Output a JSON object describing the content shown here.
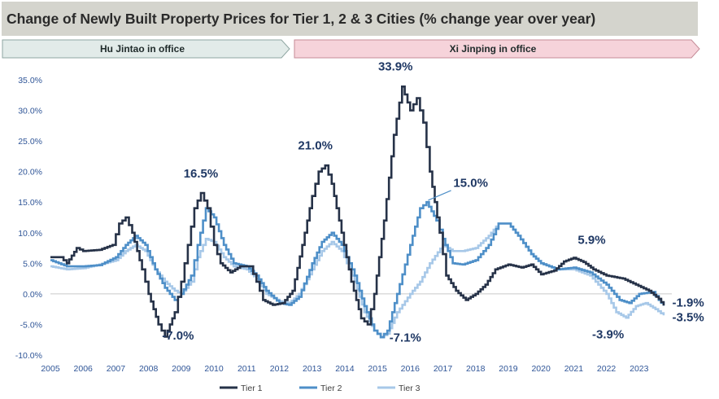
{
  "title": "Change of Newly Built Property Prices for Tier 1, 2 & 3 Cities (% change year over year)",
  "bands": [
    {
      "label": "Hu Jintao in office",
      "color": "#e2ebe9",
      "border": "#8fa6a2"
    },
    {
      "label": "Xi Jinping in office",
      "color": "#f6d3da",
      "border": "#c58b97"
    }
  ],
  "chart_data": {
    "type": "line",
    "ylim": [
      -10,
      35
    ],
    "xlim": [
      2005,
      2024
    ],
    "y_ticks": [
      "35.0%",
      "30.0%",
      "25.0%",
      "20.0%",
      "15.0%",
      "10.0%",
      "5.0%",
      "0.0%",
      "-5.0%",
      "-10.0%"
    ],
    "x_ticks": [
      "2005",
      "2006",
      "2007",
      "2008",
      "2009",
      "2010",
      "2011",
      "2012",
      "2013",
      "2014",
      "2015",
      "2016",
      "2017",
      "2018",
      "2019",
      "2020",
      "2021",
      "2022",
      "2023"
    ],
    "series": [
      {
        "name": "Tier 1",
        "color": "#263248",
        "points": [
          [
            2005,
            6
          ],
          [
            2005.3,
            6
          ],
          [
            2005.5,
            5
          ],
          [
            2005.8,
            7.5
          ],
          [
            2006,
            7
          ],
          [
            2006.5,
            7.2
          ],
          [
            2006.9,
            8
          ],
          [
            2007.1,
            11.5
          ],
          [
            2007.3,
            12.5
          ],
          [
            2007.5,
            10
          ],
          [
            2007.8,
            4
          ],
          [
            2008,
            0
          ],
          [
            2008.3,
            -5
          ],
          [
            2008.5,
            -7
          ],
          [
            2008.8,
            -3
          ],
          [
            2009,
            2
          ],
          [
            2009.2,
            8
          ],
          [
            2009.4,
            14
          ],
          [
            2009.6,
            16.5
          ],
          [
            2009.8,
            14
          ],
          [
            2010,
            8
          ],
          [
            2010.2,
            5
          ],
          [
            2010.5,
            3.5
          ],
          [
            2010.8,
            4.5
          ],
          [
            2011.1,
            4.5
          ],
          [
            2011.3,
            2
          ],
          [
            2011.5,
            -1
          ],
          [
            2011.8,
            -1.8
          ],
          [
            2012.1,
            -1.5
          ],
          [
            2012.4,
            0.5
          ],
          [
            2012.7,
            8
          ],
          [
            2013,
            16
          ],
          [
            2013.2,
            20
          ],
          [
            2013.4,
            21
          ],
          [
            2013.6,
            18
          ],
          [
            2013.9,
            10
          ],
          [
            2014.2,
            2
          ],
          [
            2014.5,
            -4
          ],
          [
            2014.7,
            -5
          ],
          [
            2014.9,
            0
          ],
          [
            2015.2,
            12
          ],
          [
            2015.5,
            26
          ],
          [
            2015.75,
            33.9
          ],
          [
            2016,
            30
          ],
          [
            2016.2,
            32
          ],
          [
            2016.4,
            28
          ],
          [
            2016.6,
            20
          ],
          [
            2016.9,
            10
          ],
          [
            2017.1,
            3
          ],
          [
            2017.4,
            0.5
          ],
          [
            2017.7,
            -1
          ],
          [
            2018,
            0
          ],
          [
            2018.3,
            1.5
          ],
          [
            2018.6,
            4
          ],
          [
            2019,
            4.8
          ],
          [
            2019.4,
            4.3
          ],
          [
            2019.7,
            4.8
          ],
          [
            2020,
            3.2
          ],
          [
            2020.4,
            3.8
          ],
          [
            2020.7,
            5.3
          ],
          [
            2021,
            5.9
          ],
          [
            2021.3,
            5.2
          ],
          [
            2021.6,
            4
          ],
          [
            2022,
            3
          ],
          [
            2022.5,
            2.5
          ],
          [
            2022.9,
            1.5
          ],
          [
            2023.3,
            0.5
          ],
          [
            2023.6,
            -0.8
          ],
          [
            2023.75,
            -1.9
          ]
        ]
      },
      {
        "name": "Tier 2",
        "color": "#4e8fc8",
        "points": [
          [
            2005,
            5.5
          ],
          [
            2005.5,
            4.5
          ],
          [
            2006,
            4.5
          ],
          [
            2006.5,
            4.7
          ],
          [
            2007,
            6
          ],
          [
            2007.3,
            8
          ],
          [
            2007.6,
            9.5
          ],
          [
            2007.9,
            8
          ],
          [
            2008.2,
            4
          ],
          [
            2008.5,
            1
          ],
          [
            2008.8,
            -1
          ],
          [
            2009,
            0
          ],
          [
            2009.3,
            3
          ],
          [
            2009.5,
            8
          ],
          [
            2009.75,
            14
          ],
          [
            2010,
            12.5
          ],
          [
            2010.3,
            8
          ],
          [
            2010.6,
            5
          ],
          [
            2011,
            4.5
          ],
          [
            2011.3,
            3
          ],
          [
            2011.6,
            0.5
          ],
          [
            2012,
            -1.5
          ],
          [
            2012.3,
            -1.8
          ],
          [
            2012.6,
            -0.5
          ],
          [
            2013,
            5
          ],
          [
            2013.3,
            8.5
          ],
          [
            2013.6,
            10
          ],
          [
            2013.9,
            8
          ],
          [
            2014.3,
            3
          ],
          [
            2014.6,
            -2
          ],
          [
            2014.9,
            -6
          ],
          [
            2015.1,
            -7.1
          ],
          [
            2015.3,
            -6
          ],
          [
            2015.6,
            0
          ],
          [
            2016,
            8
          ],
          [
            2016.3,
            14
          ],
          [
            2016.5,
            15
          ],
          [
            2016.8,
            12
          ],
          [
            2017,
            9
          ],
          [
            2017.3,
            5
          ],
          [
            2017.6,
            4.8
          ],
          [
            2018,
            5.5
          ],
          [
            2018.4,
            8
          ],
          [
            2018.7,
            11.5
          ],
          [
            2019,
            11.5
          ],
          [
            2019.3,
            9.5
          ],
          [
            2019.7,
            6.5
          ],
          [
            2020,
            5
          ],
          [
            2020.5,
            4
          ],
          [
            2021,
            4.3
          ],
          [
            2021.5,
            3.5
          ],
          [
            2022,
            1.5
          ],
          [
            2022.4,
            -1
          ],
          [
            2022.7,
            -1.5
          ],
          [
            2023,
            0
          ],
          [
            2023.4,
            0.3
          ],
          [
            2023.6,
            -1
          ],
          [
            2023.75,
            -1.9
          ]
        ]
      },
      {
        "name": "Tier 3",
        "color": "#a7c8e8",
        "points": [
          [
            2005,
            4.5
          ],
          [
            2005.5,
            4
          ],
          [
            2006,
            4.2
          ],
          [
            2006.5,
            4.8
          ],
          [
            2007,
            5.5
          ],
          [
            2007.3,
            7
          ],
          [
            2007.6,
            8
          ],
          [
            2007.9,
            7
          ],
          [
            2008.2,
            4
          ],
          [
            2008.5,
            2
          ],
          [
            2008.8,
            0.5
          ],
          [
            2009,
            0
          ],
          [
            2009.3,
            2
          ],
          [
            2009.5,
            6
          ],
          [
            2009.75,
            9
          ],
          [
            2010,
            8.5
          ],
          [
            2010.3,
            6
          ],
          [
            2010.6,
            4.5
          ],
          [
            2011,
            4
          ],
          [
            2011.3,
            2.5
          ],
          [
            2011.6,
            0
          ],
          [
            2012,
            -1.2
          ],
          [
            2012.3,
            -1.5
          ],
          [
            2012.6,
            0
          ],
          [
            2013,
            4
          ],
          [
            2013.3,
            7
          ],
          [
            2013.6,
            8.5
          ],
          [
            2013.9,
            7
          ],
          [
            2014.3,
            2
          ],
          [
            2014.6,
            -3
          ],
          [
            2014.9,
            -6
          ],
          [
            2015.1,
            -7
          ],
          [
            2015.3,
            -6.5
          ],
          [
            2015.6,
            -3
          ],
          [
            2016,
            0
          ],
          [
            2016.3,
            2
          ],
          [
            2016.6,
            5
          ],
          [
            2017,
            8
          ],
          [
            2017.3,
            7
          ],
          [
            2017.6,
            7
          ],
          [
            2018,
            7.5
          ],
          [
            2018.4,
            9.5
          ],
          [
            2018.7,
            11.5
          ],
          [
            2019,
            11.5
          ],
          [
            2019.3,
            9.5
          ],
          [
            2019.7,
            6.5
          ],
          [
            2020,
            5
          ],
          [
            2020.5,
            4
          ],
          [
            2021,
            4
          ],
          [
            2021.5,
            3
          ],
          [
            2022,
            0
          ],
          [
            2022.3,
            -3
          ],
          [
            2022.6,
            -3.9
          ],
          [
            2022.9,
            -2
          ],
          [
            2023.2,
            -1.5
          ],
          [
            2023.5,
            -2.5
          ],
          [
            2023.75,
            -3.5
          ]
        ]
      }
    ],
    "annotations": [
      {
        "text": "16.5%",
        "x": 2009.6,
        "y": 19
      },
      {
        "text": "-7.0%",
        "x": 2008.9,
        "y": -7.5
      },
      {
        "text": "21.0%",
        "x": 2013.1,
        "y": 23.6
      },
      {
        "text": "33.9%",
        "x": 2015.55,
        "y": 36.5
      },
      {
        "text": "-7.1%",
        "x": 2015.85,
        "y": -7.8
      },
      {
        "text": "15.0%",
        "x": 2017.85,
        "y": 17.5
      },
      {
        "text": "5.9%",
        "x": 2021.55,
        "y": 8.2
      },
      {
        "text": "-3.9%",
        "x": 2022.05,
        "y": -7.3
      },
      {
        "text": "-1.9%",
        "x": 2024.5,
        "y": -2.1
      },
      {
        "text": "-3.5%",
        "x": 2024.5,
        "y": -4.5
      }
    ],
    "grid": false,
    "legend": "bottom"
  }
}
